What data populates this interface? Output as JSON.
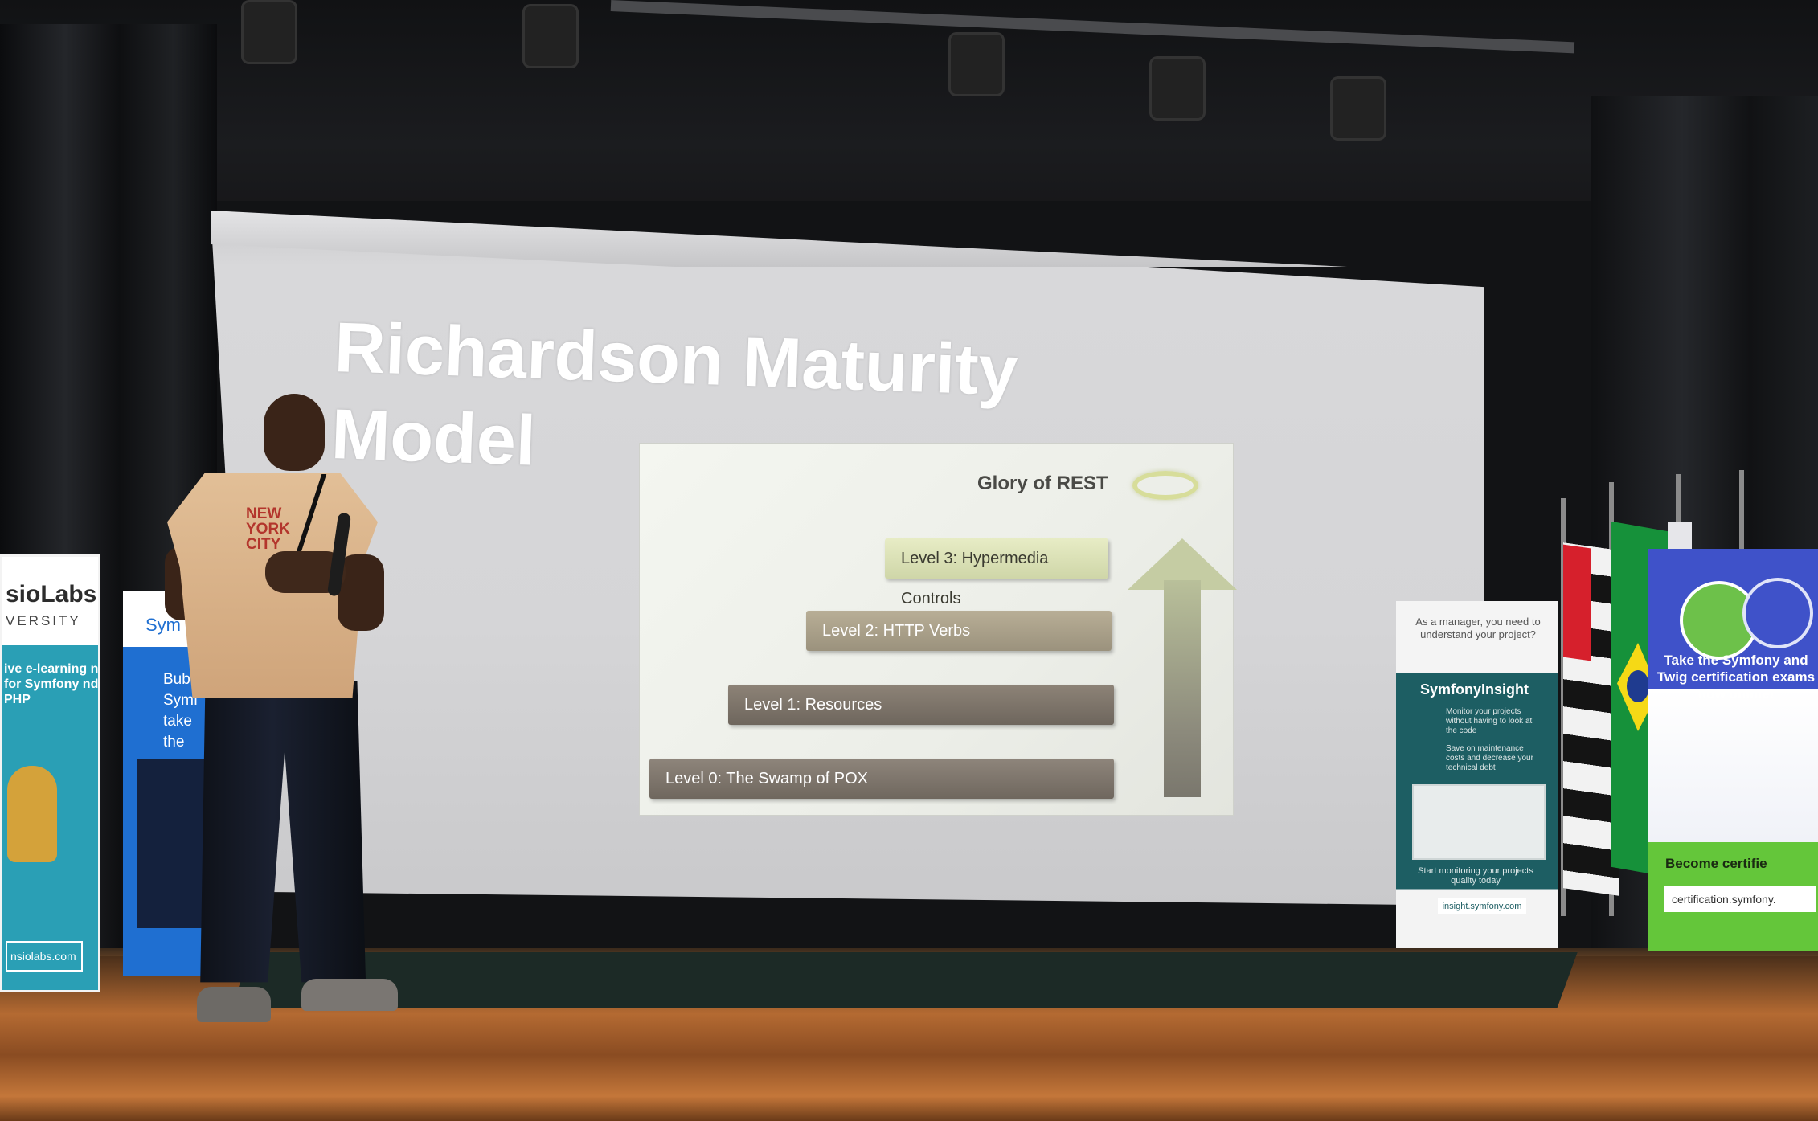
{
  "slide": {
    "title_line1": "Richardson Maturity",
    "title_line2": "Model",
    "diagram": {
      "top_label": "Glory of REST",
      "levels": [
        "Level 0: The Swamp of POX",
        "Level 1: Resources",
        "Level 2: HTTP Verbs",
        "Level 3: Hypermedia Controls"
      ]
    }
  },
  "banners": {
    "sensio": {
      "brand": "sioLabs",
      "brand2": "VERSITY",
      "tagline": "ive e-learning n for Symfony nd PHP",
      "url": "nsiolabs.com"
    },
    "symfony": {
      "brand": "Sym",
      "tagline": "Bubl wi Symf take the"
    },
    "insight": {
      "question": "As a manager, you need to understand your project?",
      "brand": "SymfonyInsight",
      "point1": "Monitor your projects without having to look at the code",
      "point2": "Save on maintenance costs and decrease your technical debt",
      "cta": "Start monitoring your projects quality today",
      "url": "insight.symfony.com"
    },
    "certification": {
      "tagline": "Take the Symfony and Twig certification exams now online!",
      "become": "Become certifie",
      "url": "certification.symfony."
    }
  },
  "speaker": {
    "shirt_print": "NEW YORK CITY"
  },
  "colors": {
    "screen": "#d5d5d7",
    "diagram_bg": "#eceee8",
    "level_dark": "#7a7168",
    "level_light": "#d6dcae",
    "symfony_blue": "#1f6fd1",
    "insight_teal": "#1d5e63",
    "cert_blue": "#3f52c9",
    "cert_green": "#64c63a",
    "stage_wood": "#b46a32"
  }
}
